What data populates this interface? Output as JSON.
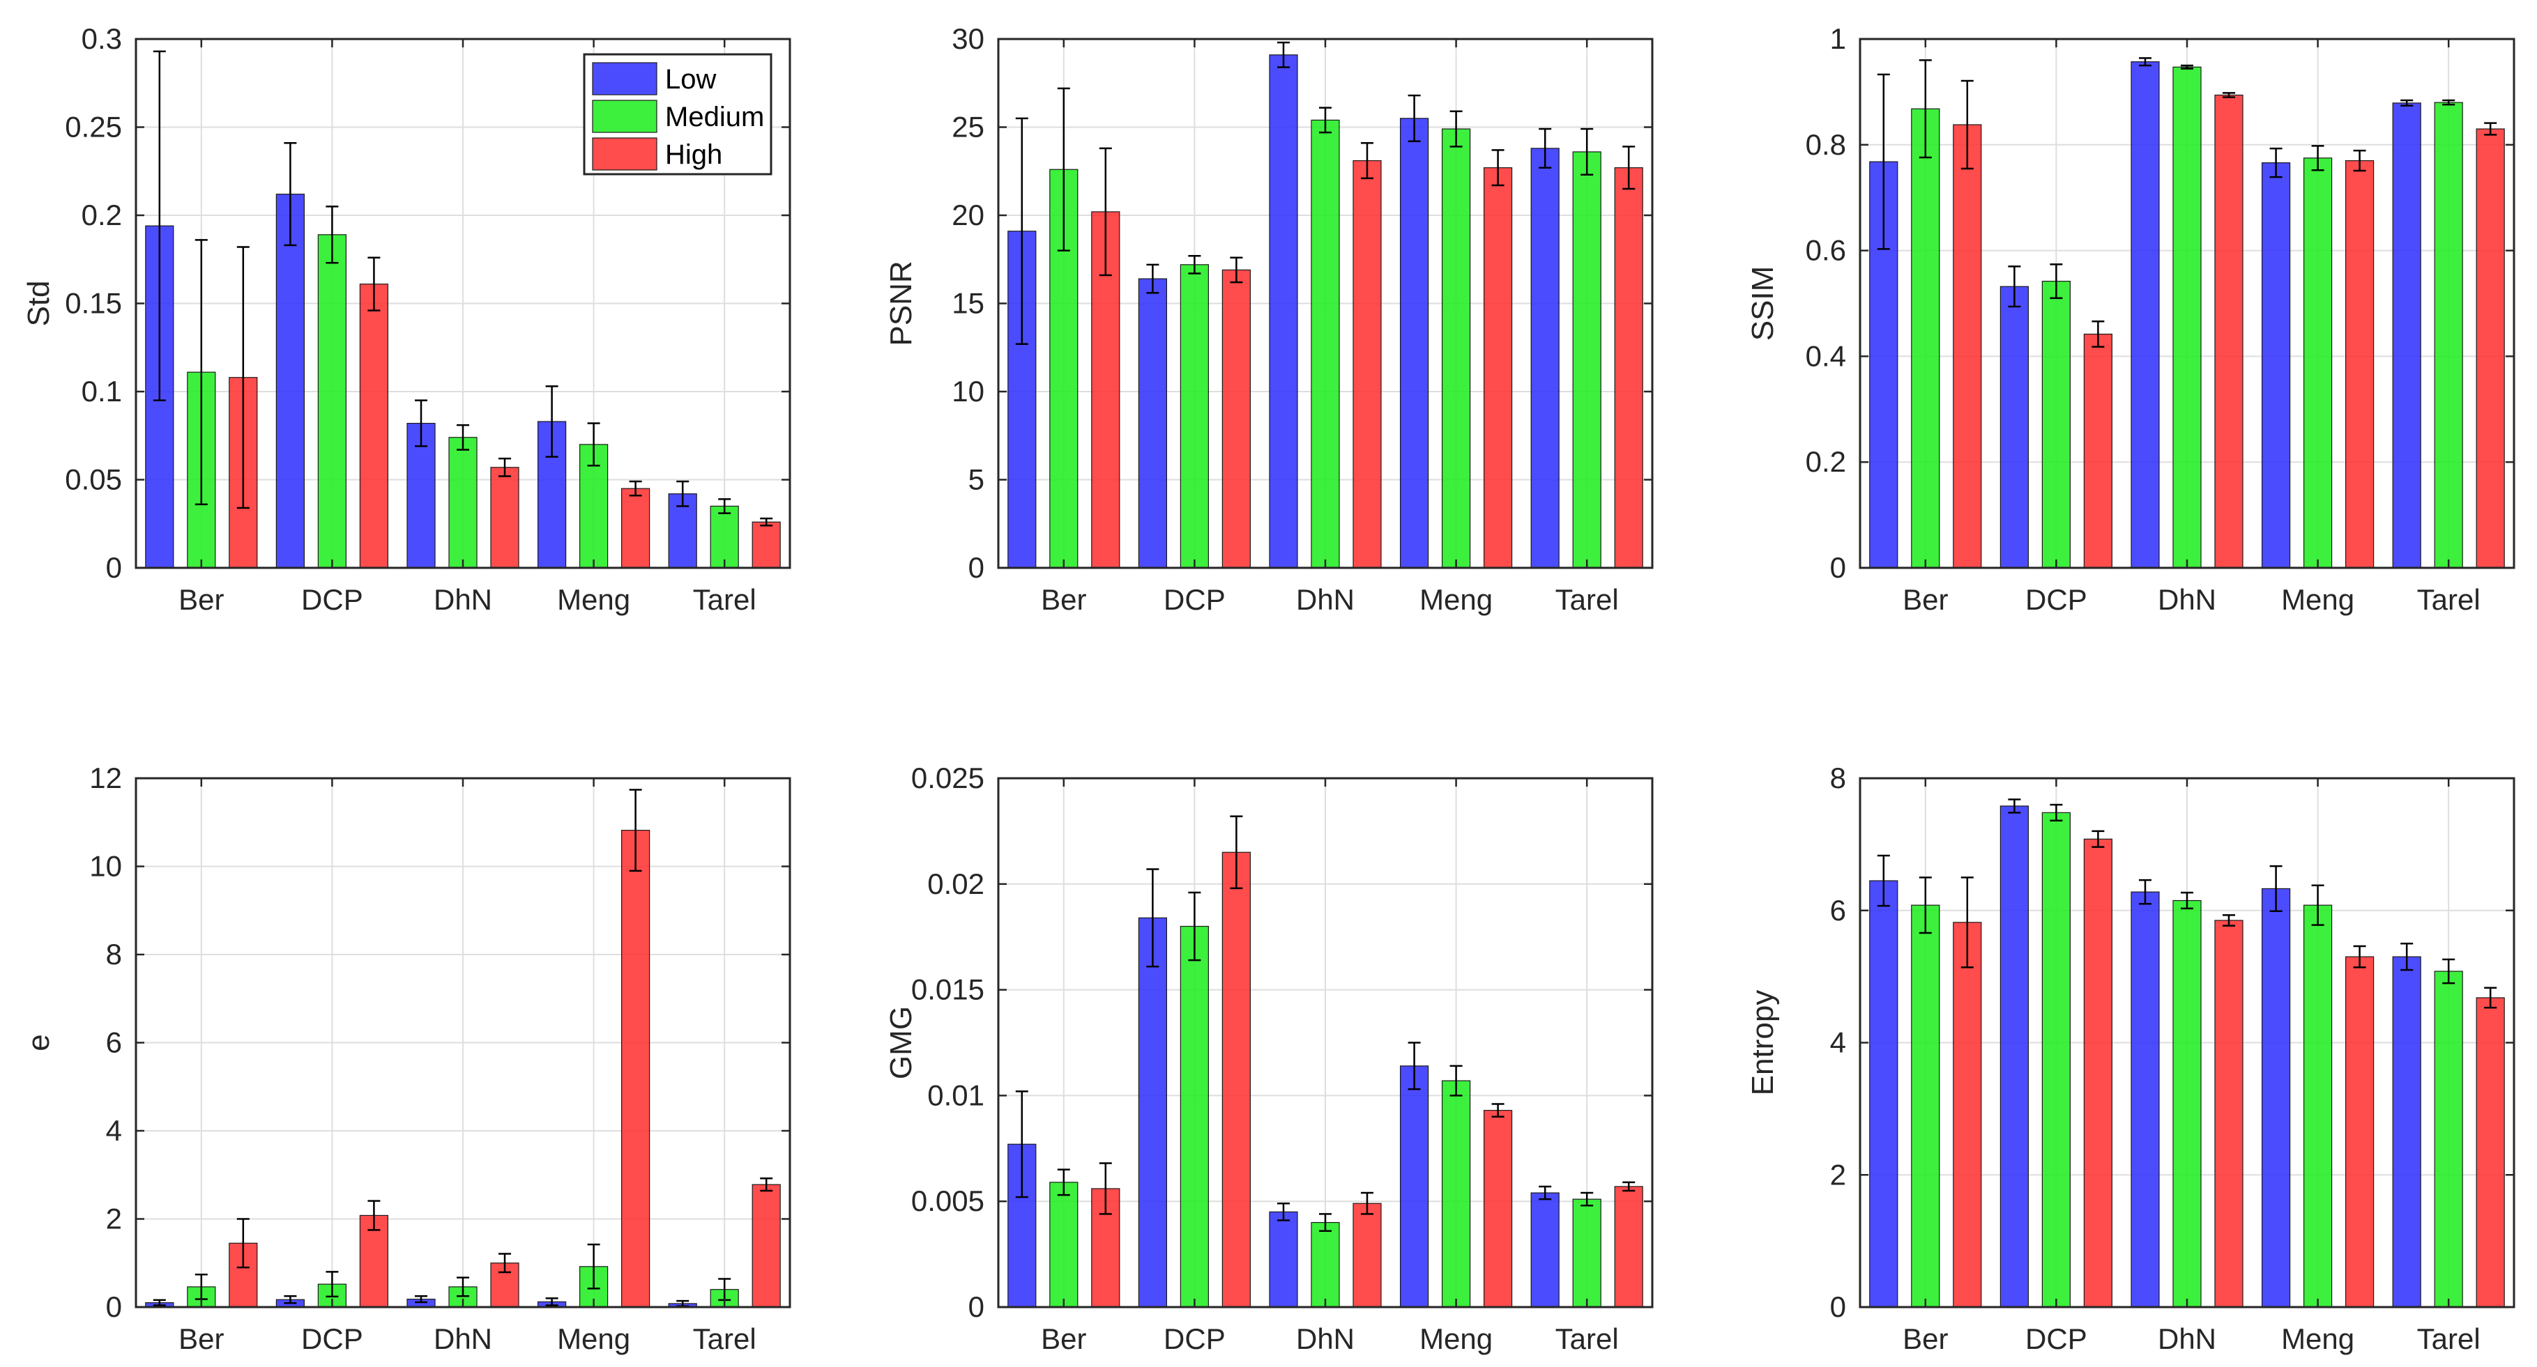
{
  "colors": {
    "Low": "#3333ff",
    "Medium": "#22ee22",
    "High": "#ff3333",
    "grid": "#dedede",
    "axis": "#262626"
  },
  "legend": {
    "position": "top-right",
    "entries": [
      "Low",
      "Medium",
      "High"
    ]
  },
  "chart_data": [
    {
      "type": "bar",
      "ylabel": "Std",
      "ylim": [
        0,
        0.3
      ],
      "yticks": [
        0,
        0.05,
        0.1,
        0.15,
        0.2,
        0.25,
        0.3
      ],
      "ytick_labels": [
        "0",
        "0.05",
        "0.1",
        "0.15",
        "0.2",
        "0.25",
        "0.3"
      ],
      "categories": [
        "Ber",
        "DCP",
        "DhN",
        "Meng",
        "Tarel"
      ],
      "grid": true,
      "show_legend": true,
      "series": [
        {
          "name": "Low",
          "values": [
            0.194,
            0.212,
            0.082,
            0.083,
            0.042
          ],
          "errors": [
            0.099,
            0.029,
            0.013,
            0.02,
            0.007
          ]
        },
        {
          "name": "Medium",
          "values": [
            0.111,
            0.189,
            0.074,
            0.07,
            0.035
          ],
          "errors": [
            0.075,
            0.016,
            0.007,
            0.012,
            0.004
          ]
        },
        {
          "name": "High",
          "values": [
            0.108,
            0.161,
            0.057,
            0.045,
            0.026
          ],
          "errors": [
            0.074,
            0.015,
            0.005,
            0.004,
            0.002
          ]
        }
      ]
    },
    {
      "type": "bar",
      "ylabel": "PSNR",
      "ylim": [
        0,
        30
      ],
      "yticks": [
        0,
        5,
        10,
        15,
        20,
        25,
        30
      ],
      "ytick_labels": [
        "0",
        "5",
        "10",
        "15",
        "20",
        "25",
        "30"
      ],
      "categories": [
        "Ber",
        "DCP",
        "DhN",
        "Meng",
        "Tarel"
      ],
      "grid": true,
      "show_legend": false,
      "series": [
        {
          "name": "Low",
          "values": [
            19.1,
            16.4,
            29.1,
            25.5,
            23.8
          ],
          "errors": [
            6.4,
            0.8,
            0.7,
            1.3,
            1.1
          ]
        },
        {
          "name": "Medium",
          "values": [
            22.6,
            17.2,
            25.4,
            24.9,
            23.6
          ],
          "errors": [
            4.6,
            0.5,
            0.7,
            1.0,
            1.3
          ]
        },
        {
          "name": "High",
          "values": [
            20.2,
            16.9,
            23.1,
            22.7,
            22.7
          ],
          "errors": [
            3.6,
            0.7,
            1.0,
            1.0,
            1.2
          ]
        }
      ]
    },
    {
      "type": "bar",
      "ylabel": "SSIM",
      "ylim": [
        0,
        1
      ],
      "yticks": [
        0,
        0.2,
        0.4,
        0.6,
        0.8,
        1
      ],
      "ytick_labels": [
        "0",
        "0.2",
        "0.4",
        "0.6",
        "0.8",
        "1"
      ],
      "categories": [
        "Ber",
        "DCP",
        "DhN",
        "Meng",
        "Tarel"
      ],
      "grid": true,
      "show_legend": false,
      "series": [
        {
          "name": "Low",
          "values": [
            0.768,
            0.532,
            0.957,
            0.766,
            0.879
          ],
          "errors": [
            0.165,
            0.038,
            0.007,
            0.027,
            0.005
          ]
        },
        {
          "name": "Medium",
          "values": [
            0.868,
            0.542,
            0.947,
            0.775,
            0.88
          ],
          "errors": [
            0.092,
            0.032,
            0.003,
            0.023,
            0.004
          ]
        },
        {
          "name": "High",
          "values": [
            0.838,
            0.442,
            0.894,
            0.77,
            0.83
          ],
          "errors": [
            0.083,
            0.024,
            0.004,
            0.019,
            0.011
          ]
        }
      ]
    },
    {
      "type": "bar",
      "ylabel": "e",
      "ylim": [
        0,
        12
      ],
      "yticks": [
        0,
        2,
        4,
        6,
        8,
        10,
        12
      ],
      "ytick_labels": [
        "0",
        "2",
        "4",
        "6",
        "8",
        "10",
        "12"
      ],
      "categories": [
        "Ber",
        "DCP",
        "DhN",
        "Meng",
        "Tarel"
      ],
      "grid": true,
      "show_legend": false,
      "series": [
        {
          "name": "Low",
          "values": [
            0.1,
            0.17,
            0.18,
            0.12,
            0.08
          ],
          "errors": [
            0.06,
            0.08,
            0.07,
            0.08,
            0.06
          ]
        },
        {
          "name": "Medium",
          "values": [
            0.46,
            0.52,
            0.46,
            0.92,
            0.4
          ],
          "errors": [
            0.28,
            0.28,
            0.21,
            0.5,
            0.24
          ]
        },
        {
          "name": "High",
          "values": [
            1.45,
            2.08,
            1.0,
            10.82,
            2.78
          ],
          "errors": [
            0.55,
            0.33,
            0.21,
            0.92,
            0.14
          ]
        }
      ]
    },
    {
      "type": "bar",
      "ylabel": "GMG",
      "ylim": [
        0,
        0.025
      ],
      "yticks": [
        0,
        0.005,
        0.01,
        0.015,
        0.02,
        0.025
      ],
      "ytick_labels": [
        "0",
        "0.005",
        "0.01",
        "0.015",
        "0.02",
        "0.025"
      ],
      "categories": [
        "Ber",
        "DCP",
        "DhN",
        "Meng",
        "Tarel"
      ],
      "grid": true,
      "show_legend": false,
      "series": [
        {
          "name": "Low",
          "values": [
            0.0077,
            0.0184,
            0.0045,
            0.0114,
            0.0054
          ],
          "errors": [
            0.0025,
            0.0023,
            0.0004,
            0.0011,
            0.0003
          ]
        },
        {
          "name": "Medium",
          "values": [
            0.0059,
            0.018,
            0.004,
            0.0107,
            0.0051
          ],
          "errors": [
            0.0006,
            0.0016,
            0.0004,
            0.0007,
            0.0003
          ]
        },
        {
          "name": "High",
          "values": [
            0.0056,
            0.0215,
            0.0049,
            0.0093,
            0.0057
          ],
          "errors": [
            0.0012,
            0.0017,
            0.0005,
            0.0003,
            0.0002
          ]
        }
      ]
    },
    {
      "type": "bar",
      "ylabel": "Entropy",
      "ylim": [
        0,
        8
      ],
      "yticks": [
        0,
        2,
        4,
        6,
        8
      ],
      "ytick_labels": [
        "0",
        "2",
        "4",
        "6",
        "8"
      ],
      "categories": [
        "Ber",
        "DCP",
        "DhN",
        "Meng",
        "Tarel"
      ],
      "grid": true,
      "show_legend": false,
      "series": [
        {
          "name": "Low",
          "values": [
            6.45,
            7.58,
            6.28,
            6.33,
            5.3
          ],
          "errors": [
            0.38,
            0.1,
            0.18,
            0.34,
            0.2
          ]
        },
        {
          "name": "Medium",
          "values": [
            6.08,
            7.48,
            6.15,
            6.08,
            5.08
          ],
          "errors": [
            0.42,
            0.12,
            0.12,
            0.3,
            0.18
          ]
        },
        {
          "name": "High",
          "values": [
            5.82,
            7.08,
            5.85,
            5.3,
            4.68
          ],
          "errors": [
            0.68,
            0.12,
            0.08,
            0.16,
            0.15
          ]
        }
      ]
    }
  ]
}
